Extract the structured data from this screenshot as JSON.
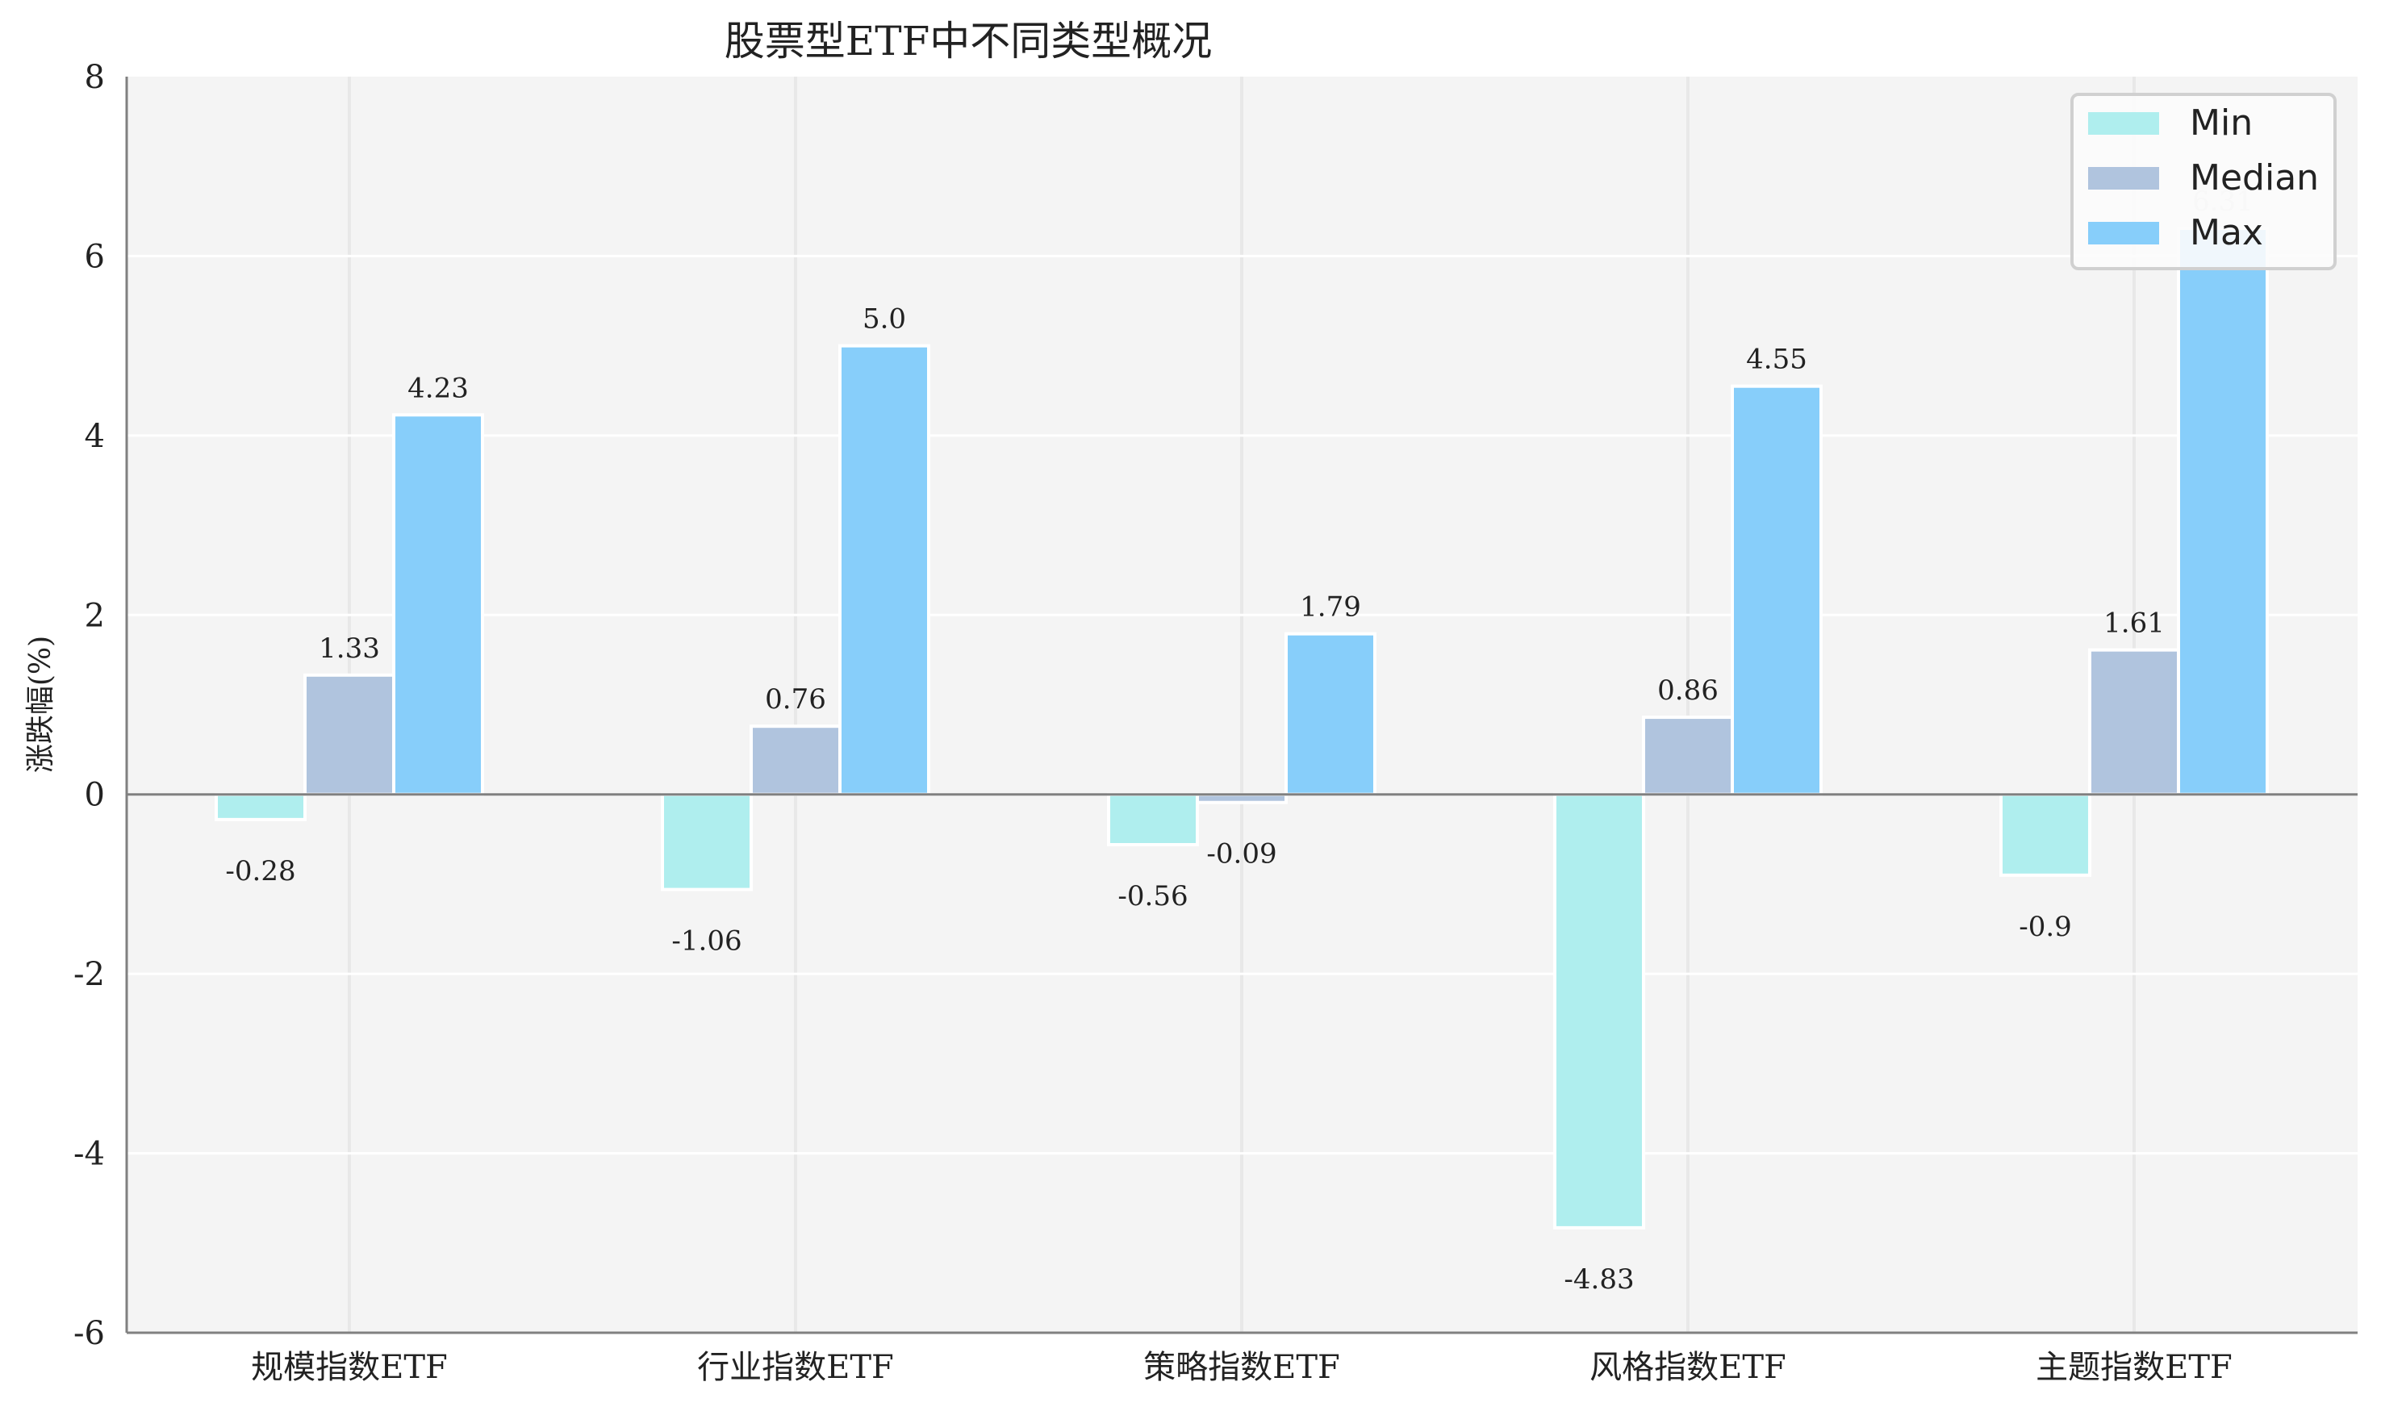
{
  "chart_data": {
    "type": "bar",
    "title": "股票型ETF中不同类型概况",
    "xlabel": "",
    "ylabel": "涨跌幅(%)",
    "ylim": [
      -6,
      8
    ],
    "yticks": [
      -6,
      -4,
      -2,
      0,
      2,
      4,
      6,
      8
    ],
    "grid": true,
    "legend_position": "upper right",
    "categories": [
      "规模指数ETF",
      "行业指数ETF",
      "策略指数ETF",
      "风格指数ETF",
      "主题指数ETF"
    ],
    "series": [
      {
        "name": "Min",
        "color": "#afeeee",
        "values": [
          -0.28,
          -1.06,
          -0.56,
          -4.83,
          -0.9
        ],
        "labels": [
          "-0.28",
          "-1.06",
          "-0.56",
          "-4.83",
          "-0.9"
        ]
      },
      {
        "name": "Median",
        "color": "#b0c4de",
        "values": [
          1.33,
          0.76,
          -0.09,
          0.86,
          1.61
        ],
        "labels": [
          "1.33",
          "0.76",
          "-0.09",
          "0.86",
          "1.61"
        ]
      },
      {
        "name": "Max",
        "color": "#87cefa",
        "values": [
          4.23,
          5.0,
          1.79,
          4.55,
          6.31
        ],
        "labels": [
          "4.23",
          "5.0",
          "1.79",
          "4.55",
          "6.31"
        ]
      }
    ]
  },
  "colors": {
    "plot_background": "#f4f4f4",
    "grid": "#ffffff",
    "vertical_grid": "#e8e8e8",
    "axis": "#808080",
    "text": "#222222"
  }
}
